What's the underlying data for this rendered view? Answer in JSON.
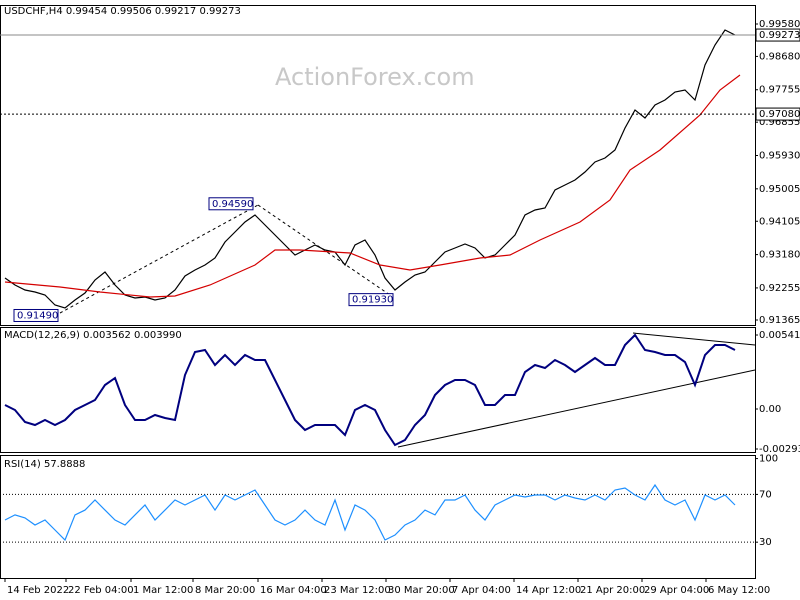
{
  "chart_data": [
    {
      "type": "line",
      "title": "USDCHF,H4  0.99454 0.99506 0.99217 0.99273",
      "watermark": "ActionForex.com",
      "x": [
        0,
        1,
        2,
        3,
        4,
        5,
        6,
        7,
        8,
        9,
        10,
        11,
        12,
        13,
        14,
        15,
        16,
        17,
        18,
        19,
        20,
        21,
        22,
        23,
        24,
        25,
        26,
        27,
        28,
        29,
        30,
        31,
        32,
        33,
        34,
        35,
        36,
        37,
        38,
        39,
        40,
        41,
        42,
        43,
        44,
        45,
        46,
        47,
        48,
        49,
        50,
        51,
        52,
        53,
        54,
        55,
        56,
        57,
        58,
        59,
        60,
        61,
        62,
        63,
        64,
        65,
        66,
        67,
        68,
        69,
        70,
        71,
        72,
        73
      ],
      "xlim": [
        -0.5,
        75
      ],
      "ylim": [
        0.91226,
        1.00107
      ],
      "yticks": [
        {
          "value": 0.9958,
          "label": "0.99580"
        },
        {
          "value": 0.9868,
          "label": "0.98680"
        },
        {
          "value": 0.97755,
          "label": "0.97755"
        },
        {
          "value": 0.96855,
          "label": "0.96855"
        },
        {
          "value": 0.9593,
          "label": "0.95930"
        },
        {
          "value": 0.95005,
          "label": "0.95005"
        },
        {
          "value": 0.94105,
          "label": "0.94105"
        },
        {
          "value": 0.9318,
          "label": "0.93180"
        },
        {
          "value": 0.92255,
          "label": "0.92255"
        },
        {
          "value": 0.91365,
          "label": "0.91365"
        }
      ],
      "series": [
        {
          "color": "#000000",
          "values": [
            0.92531,
            0.92337,
            0.92198,
            0.92143,
            0.92059,
            0.91782,
            0.91699,
            0.91921,
            0.92115,
            0.92476,
            0.92698,
            0.92337,
            0.92059,
            0.91976,
            0.92004,
            0.91921,
            0.91976,
            0.92198,
            0.92587,
            0.92753,
            0.92892,
            0.93086,
            0.9353,
            0.93808,
            0.94085,
            0.9428,
            0.94002,
            0.93725,
            0.93447,
            0.9317,
            0.93308,
            0.93447,
            0.93308,
            0.93253,
            0.92892,
            0.93447,
            0.93586,
            0.9317,
            0.92531,
            0.92198,
            0.9242,
            0.92614,
            0.92698,
            0.92975,
            0.93253,
            0.93364,
            0.93475,
            0.93364,
            0.93086,
            0.9317,
            0.93447,
            0.93725,
            0.9428,
            0.94418,
            0.94474,
            0.94973,
            0.95112,
            0.95251,
            0.95473,
            0.9575,
            0.95861,
            0.96083,
            0.96694,
            0.97193,
            0.96971,
            0.97332,
            0.97471,
            0.97693,
            0.97748,
            0.97471,
            0.98442,
            0.98997,
            0.99413,
            0.99275
          ]
        },
        {
          "color": "#d40000",
          "x": [
            0,
            5.5,
            9.5,
            14.5,
            17,
            20.5,
            25,
            27,
            29.5,
            34.5,
            37.5,
            40.5,
            43.5,
            47.5,
            50.5,
            53.5,
            57.5,
            60.5,
            62.5,
            65.5,
            69.5,
            71.5,
            73.5
          ],
          "values": [
            0.9242,
            0.92282,
            0.92143,
            0.92004,
            0.92032,
            0.92337,
            0.92892,
            0.93308,
            0.93308,
            0.93225,
            0.92892,
            0.92753,
            0.92892,
            0.93086,
            0.9317,
            0.93586,
            0.94085,
            0.94696,
            0.95528,
            0.96083,
            0.97055,
            0.97748,
            0.98165
          ]
        }
      ],
      "price_lines": [
        {
          "value": 0.99273,
          "style": "solid"
        },
        {
          "value": 0.9708,
          "label": "0.97080",
          "style": "dotted"
        }
      ],
      "annotations": [
        {
          "label": "0.94590",
          "value": 0.9459,
          "x": 25
        },
        {
          "label": "0.91930",
          "value": 0.9193,
          "x": 39
        },
        {
          "label": "0.91490",
          "value": 0.9149,
          "x": 5.5
        }
      ]
    },
    {
      "type": "line",
      "title": "MACD(12,26,9) 0.003562 0.003990",
      "x": [
        0,
        1,
        2,
        3,
        4,
        5,
        6,
        7,
        8,
        9,
        10,
        11,
        12,
        13,
        14,
        15,
        16,
        17,
        18,
        19,
        20,
        21,
        22,
        23,
        24,
        25,
        26,
        27,
        28,
        29,
        30,
        31,
        32,
        33,
        34,
        35,
        36,
        37,
        38,
        39,
        40,
        41,
        42,
        43,
        44,
        45,
        46,
        47,
        48,
        49,
        50,
        51,
        52,
        53,
        54,
        55,
        56,
        57,
        58,
        59,
        60,
        61,
        62,
        63,
        64,
        65,
        66,
        67,
        68,
        69,
        70,
        71,
        72,
        73
      ],
      "xlim": [
        -0.5,
        75
      ],
      "ylim": [
        -0.003149,
        0.006006
      ],
      "yticks": [
        0.005419,
        {
          "value": 0,
          "label": "0.00"
        },
        -0.00293
      ],
      "series": [
        {
          "color": "#00007f",
          "values": [
            0.000293,
            -7.3e-05,
            -0.000952,
            -0.001172,
            -0.000806,
            -0.001172,
            -0.000806,
            -7.3e-05,
            0.000293,
            0.000659,
            0.001758,
            0.00227,
            0.000293,
            -0.000806,
            -0.000806,
            -0.000439,
            -0.000659,
            -0.000806,
            0.00249,
            0.004175,
            0.004321,
            0.003223,
            0.003955,
            0.003223,
            0.003955,
            0.003589,
            0.003589,
            0.002124,
            0.000659,
            -0.000806,
            -0.001538,
            -0.001172,
            -0.001172,
            -0.001172,
            -0.001904,
            -7.3e-05,
            0.000293,
            -7.3e-05,
            -0.001538,
            -0.002637,
            -0.00227,
            -0.001172,
            -0.000439,
            0.001025,
            0.001758,
            0.002124,
            0.002124,
            0.001758,
            0.000293,
            0.000293,
            0.001025,
            0.001025,
            0.00271,
            0.003223,
            0.003003,
            0.003589,
            0.003223,
            0.00271,
            0.003223,
            0.003735,
            0.003223,
            0.003223,
            0.004687,
            0.00542,
            0.004321,
            0.004175,
            0.003955,
            0.003955,
            0.003442,
            0.001758,
            0.003955,
            0.004687,
            0.004687,
            0.004321
          ]
        }
      ]
    },
    {
      "type": "line",
      "title": "RSI(14) 57.8888",
      "x": [
        0,
        1,
        2,
        3,
        4,
        5,
        6,
        7,
        8,
        9,
        10,
        11,
        12,
        13,
        14,
        15,
        16,
        17,
        18,
        19,
        20,
        21,
        22,
        23,
        24,
        25,
        26,
        27,
        28,
        29,
        30,
        31,
        32,
        33,
        34,
        35,
        36,
        37,
        38,
        39,
        40,
        41,
        42,
        43,
        44,
        45,
        46,
        47,
        48,
        49,
        50,
        51,
        52,
        53,
        54,
        55,
        56,
        57,
        58,
        59,
        60,
        61,
        62,
        63,
        64,
        65,
        66,
        67,
        68,
        69,
        70,
        71,
        72,
        73
      ],
      "xlim": [
        -0.5,
        75
      ],
      "ylim": [
        0,
        103
      ],
      "yticks": [
        100,
        70,
        30
      ],
      "levels": [
        70,
        30
      ],
      "xticks": [
        {
          "value": 0,
          "label": "14 Feb 2022"
        },
        {
          "value": 6.1,
          "label": "22 Feb 04:00"
        },
        {
          "value": 12.6,
          "label": "1 Mar 12:00"
        },
        {
          "value": 18.8,
          "label": "8 Mar 20:00"
        },
        {
          "value": 25.3,
          "label": "16 Mar 04:00"
        },
        {
          "value": 31.7,
          "label": "23 Mar 12:00"
        },
        {
          "value": 38.1,
          "label": "30 Mar 20:00"
        },
        {
          "value": 44.5,
          "label": "7 Apr 04:00"
        },
        {
          "value": 50.9,
          "label": "14 Apr 12:00"
        },
        {
          "value": 57.3,
          "label": "21 Apr 20:00"
        },
        {
          "value": 63.7,
          "label": "29 Apr 04:00"
        },
        {
          "value": 70.1,
          "label": "6 May 12:00"
        }
      ],
      "series": [
        {
          "color": "#1e90ff",
          "values": [
            48.6,
            52.8,
            50.3,
            44.4,
            48.6,
            40.2,
            31.8,
            52.8,
            56.9,
            65.3,
            56.9,
            48.6,
            44.4,
            52.8,
            61.1,
            48.6,
            56.9,
            65.3,
            61.1,
            65.3,
            69.5,
            56.9,
            69.5,
            65.3,
            69.5,
            73.7,
            61.1,
            48.6,
            44.4,
            48.6,
            56.9,
            48.6,
            44.4,
            65.3,
            40.2,
            61.1,
            56.9,
            48.6,
            31.8,
            36,
            44.4,
            48.6,
            56.9,
            52.8,
            65.3,
            65.3,
            69.5,
            56.9,
            48.6,
            61.1,
            65.3,
            69.5,
            67.8,
            69.5,
            69.5,
            65.3,
            69.5,
            67,
            65.3,
            69.5,
            65.3,
            73.7,
            75.4,
            69.5,
            65.3,
            77.9,
            65.3,
            61.1,
            65.3,
            48.6,
            69.5,
            65.3,
            69.5,
            61.1
          ]
        }
      ]
    }
  ]
}
